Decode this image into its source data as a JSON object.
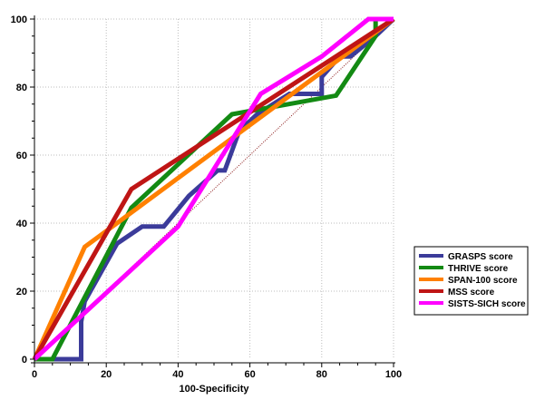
{
  "chart_data": {
    "type": "line",
    "title": "",
    "xlabel": "100-Specificity",
    "ylabel": "",
    "xlim": [
      0,
      100
    ],
    "ylim": [
      0,
      100
    ],
    "xticks": [
      "0",
      "20",
      "40",
      "60",
      "80",
      "100"
    ],
    "yticks": [
      "0",
      "20",
      "40",
      "60",
      "80",
      "100"
    ],
    "grid": true,
    "legend_position": "right",
    "reference_line": {
      "x": [
        0,
        100
      ],
      "y": [
        0,
        100
      ],
      "color": "#8b1a1a"
    },
    "series": [
      {
        "name": "GRASPS score",
        "color": "#3b3b9a",
        "x": [
          0,
          5,
          13,
          13,
          14,
          23,
          30,
          36,
          43,
          51,
          53,
          57,
          62,
          71,
          80,
          80,
          85,
          88,
          95,
          100
        ],
        "y": [
          0,
          0,
          0,
          11,
          17,
          34,
          39,
          39,
          48,
          55.5,
          55.5,
          67,
          72,
          78,
          78,
          83,
          89,
          89,
          95,
          100
        ]
      },
      {
        "name": "THRIVE score",
        "color": "#138a13",
        "x": [
          0,
          5,
          27,
          55,
          84,
          95,
          95,
          100
        ],
        "y": [
          0,
          0,
          44.5,
          72,
          77.5,
          95,
          100,
          100
        ]
      },
      {
        "name": "SPAN-100 score",
        "color": "#ff8000",
        "x": [
          0,
          14,
          100
        ],
        "y": [
          0,
          33,
          100
        ]
      },
      {
        "name": "MSS score",
        "color": "#bf1515",
        "x": [
          0,
          27,
          100
        ],
        "y": [
          0,
          50,
          100
        ]
      },
      {
        "name": "SISTS-SICH score",
        "color": "#ff00ff",
        "x": [
          0,
          40,
          63,
          80,
          93,
          100
        ],
        "y": [
          0,
          39,
          78,
          89,
          100,
          100
        ]
      }
    ]
  }
}
